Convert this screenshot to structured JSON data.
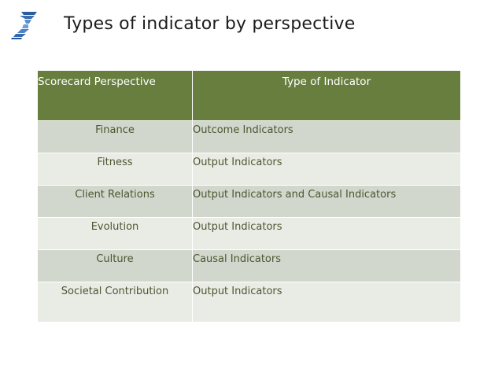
{
  "slide": {
    "title": "Types of indicator by perspective"
  },
  "colors": {
    "header_bg": "#677e3e",
    "row_dark": "#d1d7cc",
    "row_light": "#e9ece5",
    "body_text": "#4e5530",
    "logo_blue": "#2a5d9f"
  },
  "icons": {
    "logo": "spiral-logo-icon"
  },
  "table": {
    "headers": [
      "Scorecard Perspective",
      "Type of Indicator"
    ],
    "rows": [
      {
        "perspective": "Finance",
        "indicator": "Outcome Indicators"
      },
      {
        "perspective": "Fitness",
        "indicator": "Output Indicators"
      },
      {
        "perspective": "Client Relations",
        "indicator": "Output Indicators and Causal Indicators"
      },
      {
        "perspective": "Evolution",
        "indicator": "Output Indicators"
      },
      {
        "perspective": "Culture",
        "indicator": "Causal Indicators"
      },
      {
        "perspective": "Societal Contribution",
        "indicator": "Output Indicators"
      }
    ]
  }
}
